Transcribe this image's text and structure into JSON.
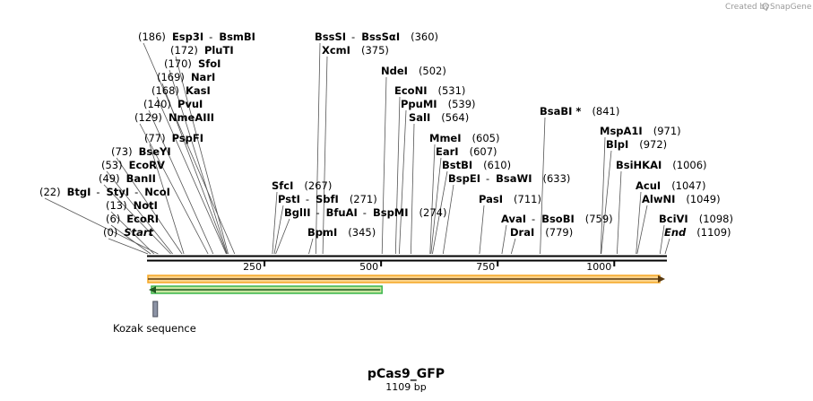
{
  "plasmid": {
    "name": "pCas9_GFP",
    "length_label": "1109 bp",
    "length": 1109
  },
  "credit": {
    "text": "Created by",
    "brand": "SnapGene"
  },
  "ticks": [
    250,
    500,
    750,
    1000
  ],
  "sites": [
    {
      "parts": [
        "Start"
      ],
      "pos": 0,
      "italic": true
    },
    {
      "parts": [
        "EcoRI"
      ],
      "pos": 6
    },
    {
      "parts": [
        "NotI"
      ],
      "pos": 13
    },
    {
      "parts": [
        "BtgI",
        "StyI",
        "NcoI"
      ],
      "pos": 22,
      "side": "left"
    },
    {
      "parts": [
        "BanII"
      ],
      "pos": 49
    },
    {
      "parts": [
        "EcoRV"
      ],
      "pos": 53
    },
    {
      "parts": [
        "BseYI"
      ],
      "pos": 73
    },
    {
      "parts": [
        "PspFI"
      ],
      "pos": 77
    },
    {
      "parts": [
        "NmeAIII"
      ],
      "pos": 129
    },
    {
      "parts": [
        "PvuI"
      ],
      "pos": 140
    },
    {
      "parts": [
        "KasI"
      ],
      "pos": 168
    },
    {
      "parts": [
        "NarI"
      ],
      "pos": 169
    },
    {
      "parts": [
        "SfoI"
      ],
      "pos": 170
    },
    {
      "parts": [
        "PluTI"
      ],
      "pos": 172
    },
    {
      "parts": [
        "Esp3I",
        "BsmBI"
      ],
      "pos": 186
    },
    {
      "parts": [
        "SfcI"
      ],
      "pos": 267
    },
    {
      "parts": [
        "PstI",
        "SbfI"
      ],
      "pos": 271
    },
    {
      "parts": [
        "BglII",
        "BfuAI",
        "BspMI"
      ],
      "pos": 274
    },
    {
      "parts": [
        "BpmI"
      ],
      "pos": 345
    },
    {
      "parts": [
        "BssSI",
        "BssSαI"
      ],
      "pos": 360
    },
    {
      "parts": [
        "XcmI"
      ],
      "pos": 375
    },
    {
      "parts": [
        "NdeI"
      ],
      "pos": 502
    },
    {
      "parts": [
        "EcoNI"
      ],
      "pos": 531
    },
    {
      "parts": [
        "PpuMI"
      ],
      "pos": 539
    },
    {
      "parts": [
        "SalI"
      ],
      "pos": 564
    },
    {
      "parts": [
        "MmeI"
      ],
      "pos": 605
    },
    {
      "parts": [
        "EarI"
      ],
      "pos": 607
    },
    {
      "parts": [
        "BstBI"
      ],
      "pos": 610
    },
    {
      "parts": [
        "BspEI",
        "BsaWI"
      ],
      "pos": 633
    },
    {
      "parts": [
        "PasI"
      ],
      "pos": 711
    },
    {
      "parts": [
        "AvaI",
        "BsoBI"
      ],
      "pos": 759
    },
    {
      "parts": [
        "DraI"
      ],
      "pos": 779
    },
    {
      "parts": [
        "BsaBI *"
      ],
      "pos": 841
    },
    {
      "parts": [
        "MspA1I"
      ],
      "pos": 971
    },
    {
      "parts": [
        "BlpI"
      ],
      "pos": 972
    },
    {
      "parts": [
        "BsiHKAI"
      ],
      "pos": 1006
    },
    {
      "parts": [
        "AcuI"
      ],
      "pos": 1047
    },
    {
      "parts": [
        "AlwNI"
      ],
      "pos": 1049
    },
    {
      "parts": [
        "BciVI"
      ],
      "pos": 1098
    },
    {
      "parts": [
        "End"
      ],
      "pos": 1109,
      "italic": true
    }
  ],
  "features": [
    {
      "kind": "orange-arrow",
      "start": 0,
      "end": 1109,
      "direction": "forward",
      "color": "#f5a623",
      "fill": "#fbd38a"
    },
    {
      "kind": "green-arrow",
      "start": 0,
      "end": 502,
      "direction": "reverse",
      "color": "#39b54a",
      "fill": "#c8e6a0"
    },
    {
      "kind": "kozak-box",
      "label": "Kozak sequence",
      "start": 13,
      "end": 22,
      "color": "#8d94a6"
    }
  ]
}
